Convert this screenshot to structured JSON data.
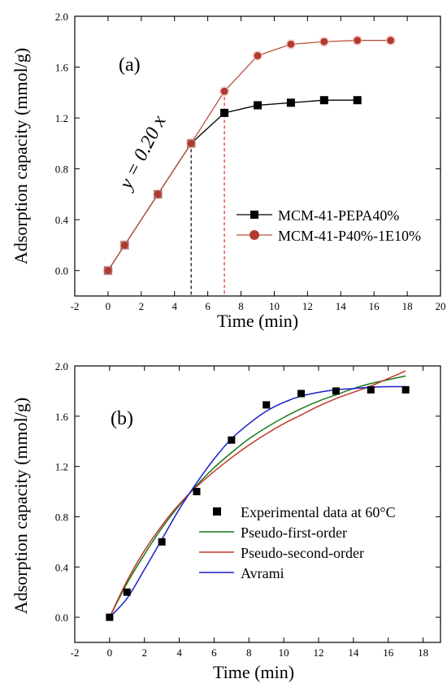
{
  "chart_data": [
    {
      "type": "line",
      "panel_label": "(a)",
      "xlabel": "Time (min)",
      "ylabel": "Adsorption capacity (mmol/g)",
      "xlim": [
        -2,
        20
      ],
      "ylim": [
        -0.2,
        2.0
      ],
      "xticks": [
        -2,
        0,
        2,
        4,
        6,
        8,
        10,
        12,
        14,
        16,
        18,
        20
      ],
      "yticks": [
        0.0,
        0.4,
        0.8,
        1.2,
        1.6,
        2.0
      ],
      "x_tick_labels": [
        "-2",
        "0",
        "2",
        "4",
        "6",
        "8",
        "10",
        "12",
        "14",
        "16",
        "18",
        "20"
      ],
      "y_tick_labels": [
        "0.0",
        "0.4",
        "0.8",
        "1.2",
        "1.6",
        "2.0"
      ],
      "grid": false,
      "legend_position": "bottom-right",
      "annotation": "y = 0.20 x",
      "series": [
        {
          "name": "MCM-41-PEPA40%",
          "marker": "square",
          "color": "#000000",
          "line_color": "#000000",
          "x": [
            0,
            1,
            3,
            5,
            7,
            9,
            11,
            13,
            15
          ],
          "y": [
            0.0,
            0.2,
            0.6,
            1.0,
            1.24,
            1.3,
            1.32,
            1.34,
            1.34
          ]
        },
        {
          "name": "MCM-41-P40%-1E10%",
          "marker": "circle",
          "color": "#b03a2e",
          "line_color": "#b5553f",
          "x": [
            0,
            1,
            3,
            5,
            7,
            9,
            11,
            13,
            15,
            17
          ],
          "y": [
            0.0,
            0.2,
            0.6,
            1.0,
            1.41,
            1.69,
            1.78,
            1.8,
            1.81,
            1.81
          ]
        }
      ],
      "vertical_markers": [
        {
          "x": 5,
          "y": 1.0,
          "color": "#000000"
        },
        {
          "x": 7,
          "y": 1.41,
          "color": "#e8281e"
        }
      ]
    },
    {
      "type": "line",
      "panel_label": "(b)",
      "xlabel": "Time (min)",
      "ylabel": "Adsorption capacity (mmol/g)",
      "xlim": [
        -2,
        19
      ],
      "ylim": [
        -0.2,
        2.0
      ],
      "xticks": [
        -2,
        0,
        2,
        4,
        6,
        8,
        10,
        12,
        14,
        16,
        18
      ],
      "yticks": [
        0.0,
        0.4,
        0.8,
        1.2,
        1.6,
        2.0
      ],
      "x_tick_labels": [
        "-2",
        "0",
        "2",
        "4",
        "6",
        "8",
        "10",
        "12",
        "14",
        "16",
        "18"
      ],
      "y_tick_labels": [
        "0.0",
        "0.4",
        "0.8",
        "1.2",
        "1.6",
        "2.0"
      ],
      "grid": false,
      "legend_position": "bottom-right",
      "scatter": {
        "name": "Experimental data at 60°C",
        "marker": "square",
        "color": "#000000",
        "x": [
          0,
          1,
          3,
          5,
          7,
          9,
          11,
          13,
          15,
          17
        ],
        "y": [
          0.0,
          0.2,
          0.6,
          1.0,
          1.41,
          1.69,
          1.78,
          1.8,
          1.81,
          1.81
        ]
      },
      "series": [
        {
          "name": "Pseudo-first-order",
          "color": "#1a7a1a",
          "x": [
            0,
            1,
            2,
            3,
            4,
            5,
            6,
            7,
            8,
            9,
            10,
            11,
            12,
            13,
            14,
            15,
            16,
            17
          ],
          "y": [
            0.0,
            0.27,
            0.5,
            0.71,
            0.89,
            1.05,
            1.19,
            1.31,
            1.42,
            1.51,
            1.59,
            1.66,
            1.72,
            1.77,
            1.82,
            1.86,
            1.89,
            1.92
          ]
        },
        {
          "name": "Pseudo-second-order",
          "color": "#c0392b",
          "x": [
            0,
            1,
            2,
            3,
            4,
            5,
            6,
            7,
            8,
            9,
            10,
            11,
            12,
            13,
            14,
            15,
            16,
            17
          ],
          "y": [
            0.0,
            0.29,
            0.53,
            0.73,
            0.9,
            1.04,
            1.16,
            1.27,
            1.37,
            1.46,
            1.54,
            1.61,
            1.68,
            1.74,
            1.79,
            1.84,
            1.9,
            1.96
          ]
        },
        {
          "name": "Avrami",
          "color": "#1c1ccc",
          "x": [
            0,
            1,
            2,
            3,
            4,
            5,
            6,
            7,
            8,
            9,
            10,
            11,
            12,
            13,
            14,
            15,
            16,
            17
          ],
          "y": [
            0.0,
            0.15,
            0.38,
            0.62,
            0.86,
            1.07,
            1.26,
            1.42,
            1.54,
            1.64,
            1.71,
            1.76,
            1.79,
            1.81,
            1.82,
            1.83,
            1.835,
            1.835
          ]
        }
      ]
    }
  ]
}
